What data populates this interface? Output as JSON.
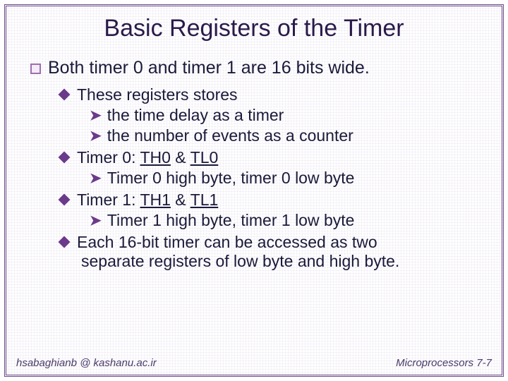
{
  "title": "Basic Registers of the Timer",
  "l1": "Both timer 0 and timer 1 are 16 bits wide.",
  "l2a": "These registers stores",
  "l3a": "the time delay as a timer",
  "l3b": "the number of events as a counter",
  "l2b_pre": "Timer 0: ",
  "l2b_u1": "TH0",
  "l2b_mid": " & ",
  "l2b_u2": "TL0",
  "l3c": "Timer 0 high byte, timer 0 low byte",
  "l2c_pre": "Timer 1: ",
  "l2c_u1": "TH1",
  "l2c_mid": " & ",
  "l2c_u2": "TL1",
  "l3d": "Timer 1 high byte, timer 1 low byte",
  "l2d_line1": "Each 16-bit timer can be accessed as two",
  "l2d_line2": "separate registers of low byte and high byte.",
  "footer_left": "hsabaghianb @ kashanu.ac.ir",
  "footer_right": "Microprocessors 7-7"
}
